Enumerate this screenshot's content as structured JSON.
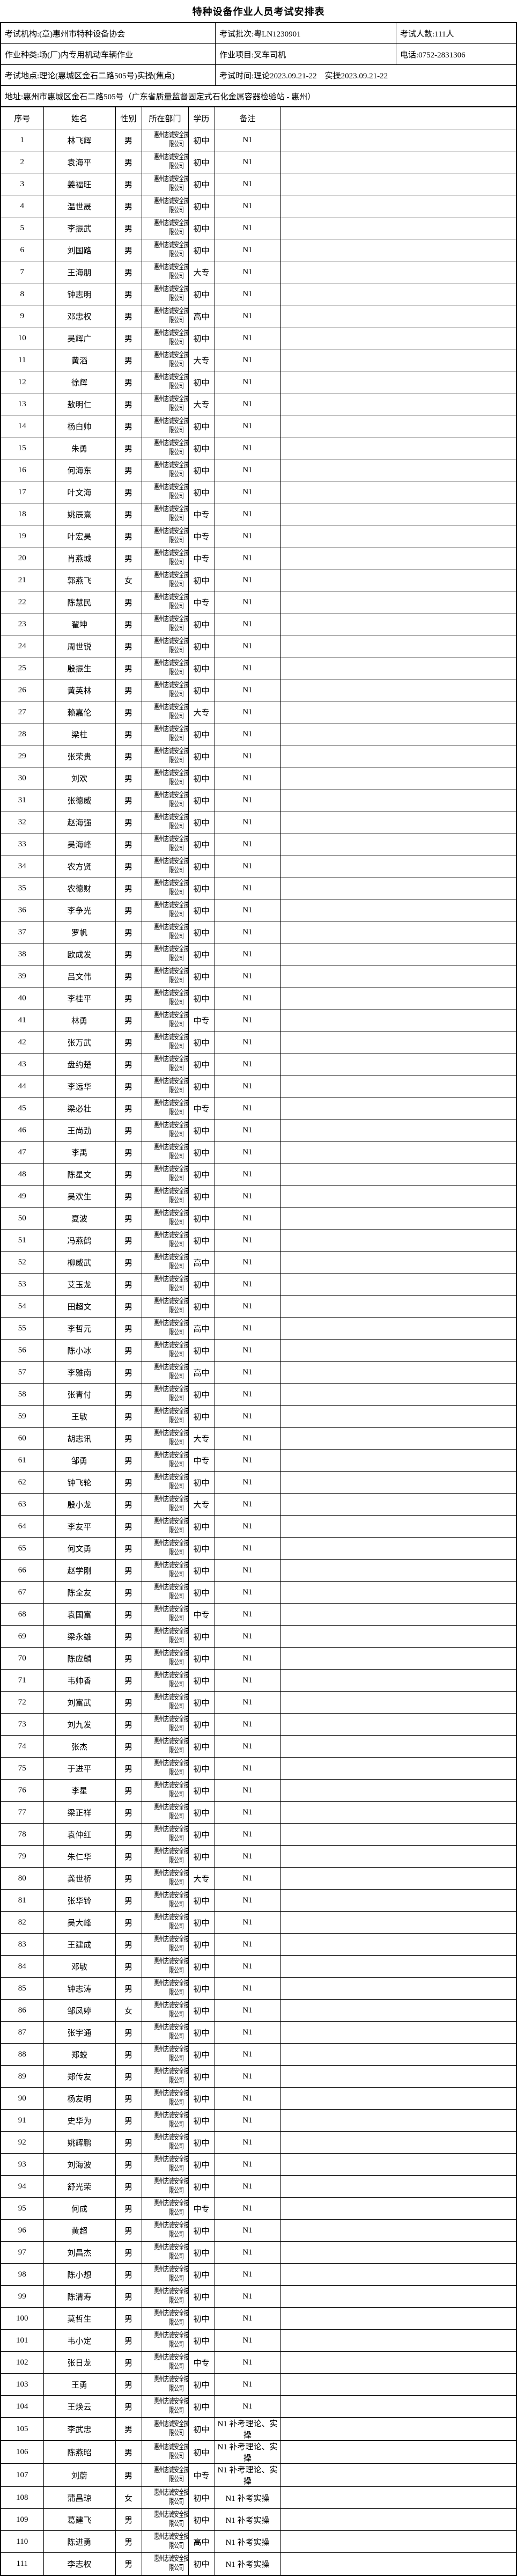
{
  "title": "特种设备作业人员考试安排表",
  "info": {
    "org": "考试机构:(章)惠州市特种设备协会",
    "batch": "考试批次:粤LN1230901",
    "count": "考试人数:111人",
    "category": "作业种类:场(厂)内专用机动车辆作业",
    "project": "作业项目:叉车司机",
    "phone": "电话:0752-2831306",
    "location": "考试地点:理论(惠城区金石二路505号)实操(焦点)",
    "time": "考试时间:理论2023.09.21-22　实操2023.09.21-22",
    "address": "地址:惠州市惠城区金石二路505号（广东省质量监督固定式石化金属容器检验站 - 惠州）"
  },
  "columns": [
    "序号",
    "姓名",
    "性别",
    "所在部门",
    "学历",
    "备注"
  ],
  "company": "惠州志诚安全技术有\n限公司",
  "rows": [
    [
      "1",
      "林飞辉",
      "男",
      "初中",
      "N1"
    ],
    [
      "2",
      "袁海平",
      "男",
      "初中",
      "N1"
    ],
    [
      "3",
      "姜福旺",
      "男",
      "初中",
      "N1"
    ],
    [
      "4",
      "温世晟",
      "男",
      "初中",
      "N1"
    ],
    [
      "5",
      "李振武",
      "男",
      "初中",
      "N1"
    ],
    [
      "6",
      "刘国路",
      "男",
      "初中",
      "N1"
    ],
    [
      "7",
      "王海朋",
      "男",
      "大专",
      "N1"
    ],
    [
      "8",
      "钟志明",
      "男",
      "初中",
      "N1"
    ],
    [
      "9",
      "邓忠权",
      "男",
      "高中",
      "N1"
    ],
    [
      "10",
      "吴辉广",
      "男",
      "初中",
      "N1"
    ],
    [
      "11",
      "黄滔",
      "男",
      "大专",
      "N1"
    ],
    [
      "12",
      "徐辉",
      "男",
      "初中",
      "N1"
    ],
    [
      "13",
      "敖明仁",
      "男",
      "大专",
      "N1"
    ],
    [
      "14",
      "杨白帅",
      "男",
      "初中",
      "N1"
    ],
    [
      "15",
      "朱勇",
      "男",
      "初中",
      "N1"
    ],
    [
      "16",
      "何海东",
      "男",
      "初中",
      "N1"
    ],
    [
      "17",
      "叶文海",
      "男",
      "初中",
      "N1"
    ],
    [
      "18",
      "姚辰熹",
      "男",
      "中专",
      "N1"
    ],
    [
      "19",
      "叶宏昊",
      "男",
      "中专",
      "N1"
    ],
    [
      "20",
      "肖燕城",
      "男",
      "中专",
      "N1"
    ],
    [
      "21",
      "郭燕飞",
      "女",
      "初中",
      "N1"
    ],
    [
      "22",
      "陈慧民",
      "男",
      "中专",
      "N1"
    ],
    [
      "23",
      "翟坤",
      "男",
      "初中",
      "N1"
    ],
    [
      "24",
      "周世锐",
      "男",
      "初中",
      "N1"
    ],
    [
      "25",
      "殷振生",
      "男",
      "初中",
      "N1"
    ],
    [
      "26",
      "黄英林",
      "男",
      "初中",
      "N1"
    ],
    [
      "27",
      "赖嘉伦",
      "男",
      "大专",
      "N1"
    ],
    [
      "28",
      "梁柱",
      "男",
      "初中",
      "N1"
    ],
    [
      "29",
      "张荣贵",
      "男",
      "初中",
      "N1"
    ],
    [
      "30",
      "刘欢",
      "男",
      "初中",
      "N1"
    ],
    [
      "31",
      "张德威",
      "男",
      "初中",
      "N1"
    ],
    [
      "32",
      "赵海强",
      "男",
      "初中",
      "N1"
    ],
    [
      "33",
      "吴海峰",
      "男",
      "初中",
      "N1"
    ],
    [
      "34",
      "农方贤",
      "男",
      "初中",
      "N1"
    ],
    [
      "35",
      "农德财",
      "男",
      "初中",
      "N1"
    ],
    [
      "36",
      "李争光",
      "男",
      "初中",
      "N1"
    ],
    [
      "37",
      "罗帆",
      "男",
      "初中",
      "N1"
    ],
    [
      "38",
      "欧成发",
      "男",
      "初中",
      "N1"
    ],
    [
      "39",
      "吕文伟",
      "男",
      "初中",
      "N1"
    ],
    [
      "40",
      "李桂平",
      "男",
      "初中",
      "N1"
    ],
    [
      "41",
      "林勇",
      "男",
      "中专",
      "N1"
    ],
    [
      "42",
      "张万武",
      "男",
      "初中",
      "N1"
    ],
    [
      "43",
      "盘约楚",
      "男",
      "初中",
      "N1"
    ],
    [
      "44",
      "李远华",
      "男",
      "初中",
      "N1"
    ],
    [
      "45",
      "梁必壮",
      "男",
      "中专",
      "N1"
    ],
    [
      "46",
      "王尚劲",
      "男",
      "初中",
      "N1"
    ],
    [
      "47",
      "李禹",
      "男",
      "初中",
      "N1"
    ],
    [
      "48",
      "陈星文",
      "男",
      "初中",
      "N1"
    ],
    [
      "49",
      "吴欢生",
      "男",
      "初中",
      "N1"
    ],
    [
      "50",
      "夏波",
      "男",
      "初中",
      "N1"
    ],
    [
      "51",
      "冯燕鹤",
      "男",
      "初中",
      "N1"
    ],
    [
      "52",
      "柳威武",
      "男",
      "高中",
      "N1"
    ],
    [
      "53",
      "艾玉龙",
      "男",
      "初中",
      "N1"
    ],
    [
      "54",
      "田超文",
      "男",
      "初中",
      "N1"
    ],
    [
      "55",
      "李哲元",
      "男",
      "高中",
      "N1"
    ],
    [
      "56",
      "陈小冰",
      "男",
      "初中",
      "N1"
    ],
    [
      "57",
      "李雅南",
      "男",
      "高中",
      "N1"
    ],
    [
      "58",
      "张青付",
      "男",
      "初中",
      "N1"
    ],
    [
      "59",
      "王敏",
      "男",
      "初中",
      "N1"
    ],
    [
      "60",
      "胡志讯",
      "男",
      "大专",
      "N1"
    ],
    [
      "61",
      "邹勇",
      "男",
      "中专",
      "N1"
    ],
    [
      "62",
      "钟飞轮",
      "男",
      "初中",
      "N1"
    ],
    [
      "63",
      "殷小龙",
      "男",
      "大专",
      "N1"
    ],
    [
      "64",
      "李友平",
      "男",
      "初中",
      "N1"
    ],
    [
      "65",
      "何文勇",
      "男",
      "初中",
      "N1"
    ],
    [
      "66",
      "赵学刚",
      "男",
      "初中",
      "N1"
    ],
    [
      "67",
      "陈全友",
      "男",
      "初中",
      "N1"
    ],
    [
      "68",
      "袁国富",
      "男",
      "中专",
      "N1"
    ],
    [
      "69",
      "梁永雄",
      "男",
      "初中",
      "N1"
    ],
    [
      "70",
      "陈应麟",
      "男",
      "初中",
      "N1"
    ],
    [
      "71",
      "韦帅香",
      "男",
      "初中",
      "N1"
    ],
    [
      "72",
      "刘富武",
      "男",
      "初中",
      "N1"
    ],
    [
      "73",
      "刘九发",
      "男",
      "初中",
      "N1"
    ],
    [
      "74",
      "张杰",
      "男",
      "初中",
      "N1"
    ],
    [
      "75",
      "于进平",
      "男",
      "初中",
      "N1"
    ],
    [
      "76",
      "李星",
      "男",
      "初中",
      "N1"
    ],
    [
      "77",
      "梁正祥",
      "男",
      "初中",
      "N1"
    ],
    [
      "78",
      "袁仲红",
      "男",
      "初中",
      "N1"
    ],
    [
      "79",
      "朱仁华",
      "男",
      "初中",
      "N1"
    ],
    [
      "80",
      "龚世桥",
      "男",
      "大专",
      "N1"
    ],
    [
      "81",
      "张华铃",
      "男",
      "初中",
      "N1"
    ],
    [
      "82",
      "吴大峰",
      "男",
      "初中",
      "N1"
    ],
    [
      "83",
      "王建成",
      "男",
      "初中",
      "N1"
    ],
    [
      "84",
      "邓敏",
      "男",
      "初中",
      "N1"
    ],
    [
      "85",
      "钟志涛",
      "男",
      "初中",
      "N1"
    ],
    [
      "86",
      "邹凤婷",
      "女",
      "初中",
      "N1"
    ],
    [
      "87",
      "张宇通",
      "男",
      "初中",
      "N1"
    ],
    [
      "88",
      "郑蛟",
      "男",
      "初中",
      "N1"
    ],
    [
      "89",
      "郑传友",
      "男",
      "初中",
      "N1"
    ],
    [
      "90",
      "杨友明",
      "男",
      "初中",
      "N1"
    ],
    [
      "91",
      "史华为",
      "男",
      "初中",
      "N1"
    ],
    [
      "92",
      "姚辉鹏",
      "男",
      "初中",
      "N1"
    ],
    [
      "93",
      "刘海波",
      "男",
      "初中",
      "N1"
    ],
    [
      "94",
      "舒光荣",
      "男",
      "初中",
      "N1"
    ],
    [
      "95",
      "何成",
      "男",
      "中专",
      "N1"
    ],
    [
      "96",
      "黄超",
      "男",
      "初中",
      "N1"
    ],
    [
      "97",
      "刘昌杰",
      "男",
      "初中",
      "N1"
    ],
    [
      "98",
      "陈小想",
      "男",
      "初中",
      "N1"
    ],
    [
      "99",
      "陈清寿",
      "男",
      "初中",
      "N1"
    ],
    [
      "100",
      "莫哲生",
      "男",
      "初中",
      "N1"
    ],
    [
      "101",
      "韦小定",
      "男",
      "初中",
      "N1"
    ],
    [
      "102",
      "张日龙",
      "男",
      "中专",
      "N1"
    ],
    [
      "103",
      "王勇",
      "男",
      "初中",
      "N1"
    ],
    [
      "104",
      "王焕云",
      "男",
      "初中",
      "N1"
    ],
    [
      "105",
      "李武忠",
      "男",
      "初中",
      "N1 补考理论、实操"
    ],
    [
      "106",
      "陈燕昭",
      "男",
      "初中",
      "N1 补考理论、实操"
    ],
    [
      "107",
      "刘蔚",
      "男",
      "中专",
      "N1 补考理论、实操"
    ],
    [
      "108",
      "蒲昌琼",
      "女",
      "初中",
      "N1 补考实操"
    ],
    [
      "109",
      "葛建飞",
      "男",
      "初中",
      "N1 补考实操"
    ],
    [
      "110",
      "陈进勇",
      "男",
      "高中",
      "N1 补考实操"
    ],
    [
      "111",
      "李志权",
      "男",
      "初中",
      "N1 补考实操"
    ]
  ]
}
